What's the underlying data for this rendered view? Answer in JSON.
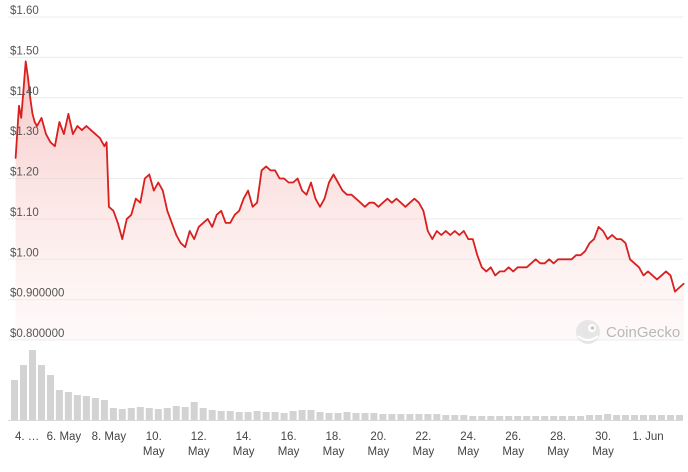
{
  "chart_data": {
    "type": "area",
    "title": "",
    "xlabel": "",
    "ylabel": "",
    "ylim": [
      0.8,
      1.6
    ],
    "grid": true,
    "line_color": "#d8201f",
    "fill_color": "#f3b5b3",
    "volume_color": "#c8c8c8",
    "y_ticks": [
      "$0.800000",
      "$0.900000",
      "$1.00",
      "$1.10",
      "$1.20",
      "$1.30",
      "$1.40",
      "$1.50",
      "$1.60"
    ],
    "x_ticks": [
      {
        "label": "4. …",
        "sub": "",
        "day": 0
      },
      {
        "label": "6. May",
        "sub": "",
        "day": 2
      },
      {
        "label": "8. May",
        "sub": "",
        "day": 4
      },
      {
        "label": "10.",
        "sub": "May",
        "day": 6
      },
      {
        "label": "12.",
        "sub": "May",
        "day": 8
      },
      {
        "label": "14.",
        "sub": "May",
        "day": 10
      },
      {
        "label": "16.",
        "sub": "May",
        "day": 12
      },
      {
        "label": "18.",
        "sub": "May",
        "day": 14
      },
      {
        "label": "20.",
        "sub": "May",
        "day": 16
      },
      {
        "label": "22.",
        "sub": "May",
        "day": 18
      },
      {
        "label": "24.",
        "sub": "May",
        "day": 20
      },
      {
        "label": "26.",
        "sub": "May",
        "day": 22
      },
      {
        "label": "28.",
        "sub": "May",
        "day": 24
      },
      {
        "label": "30.",
        "sub": "May",
        "day": 26
      },
      {
        "label": "1. Jun",
        "sub": "",
        "day": 28
      }
    ],
    "series": [
      {
        "name": "Price",
        "x": [
          -0.15,
          0.0,
          0.1,
          0.2,
          0.3,
          0.4,
          0.5,
          0.6,
          0.7,
          0.8,
          1.0,
          1.2,
          1.4,
          1.6,
          1.8,
          2.0,
          2.2,
          2.4,
          2.6,
          2.8,
          3.0,
          3.2,
          3.4,
          3.6,
          3.8,
          3.9,
          4.0,
          4.2,
          4.4,
          4.6,
          4.8,
          5.0,
          5.2,
          5.4,
          5.6,
          5.8,
          6.0,
          6.2,
          6.4,
          6.6,
          6.8,
          7.0,
          7.2,
          7.4,
          7.6,
          7.8,
          8.0,
          8.2,
          8.4,
          8.6,
          8.8,
          9.0,
          9.2,
          9.4,
          9.6,
          9.8,
          10.0,
          10.2,
          10.4,
          10.6,
          10.8,
          11.0,
          11.2,
          11.4,
          11.6,
          11.8,
          12.0,
          12.2,
          12.4,
          12.6,
          12.8,
          13.0,
          13.2,
          13.4,
          13.6,
          13.8,
          14.0,
          14.2,
          14.4,
          14.6,
          14.8,
          15.0,
          15.2,
          15.4,
          15.6,
          15.8,
          16.0,
          16.2,
          16.4,
          16.6,
          16.8,
          17.0,
          17.2,
          17.4,
          17.6,
          17.8,
          18.0,
          18.2,
          18.4,
          18.6,
          18.8,
          19.0,
          19.2,
          19.4,
          19.6,
          19.8,
          20.0,
          20.2,
          20.4,
          20.6,
          20.8,
          21.0,
          21.2,
          21.4,
          21.6,
          21.8,
          22.0,
          22.2,
          22.4,
          22.6,
          22.8,
          23.0,
          23.2,
          23.4,
          23.6,
          23.8,
          24.0,
          24.2,
          24.4,
          24.6,
          24.8,
          25.0,
          25.2,
          25.4,
          25.6,
          25.8,
          26.0,
          26.2,
          26.4,
          26.6,
          26.8,
          27.0,
          27.2,
          27.4,
          27.6,
          27.8,
          28.0,
          28.2,
          28.4,
          28.6,
          28.8,
          29.0,
          29.2,
          29.4,
          29.6
        ],
        "values": [
          1.25,
          1.38,
          1.35,
          1.42,
          1.49,
          1.45,
          1.4,
          1.36,
          1.34,
          1.33,
          1.35,
          1.31,
          1.29,
          1.28,
          1.34,
          1.31,
          1.36,
          1.31,
          1.33,
          1.32,
          1.33,
          1.32,
          1.31,
          1.3,
          1.28,
          1.29,
          1.13,
          1.12,
          1.09,
          1.05,
          1.1,
          1.11,
          1.15,
          1.14,
          1.2,
          1.21,
          1.17,
          1.19,
          1.17,
          1.12,
          1.09,
          1.06,
          1.04,
          1.03,
          1.07,
          1.05,
          1.08,
          1.09,
          1.1,
          1.08,
          1.11,
          1.12,
          1.09,
          1.09,
          1.11,
          1.12,
          1.15,
          1.17,
          1.13,
          1.14,
          1.22,
          1.23,
          1.22,
          1.22,
          1.2,
          1.2,
          1.19,
          1.19,
          1.2,
          1.17,
          1.16,
          1.19,
          1.15,
          1.13,
          1.15,
          1.19,
          1.21,
          1.19,
          1.17,
          1.16,
          1.16,
          1.15,
          1.14,
          1.13,
          1.14,
          1.14,
          1.13,
          1.14,
          1.15,
          1.14,
          1.15,
          1.14,
          1.13,
          1.14,
          1.15,
          1.14,
          1.12,
          1.07,
          1.05,
          1.07,
          1.06,
          1.07,
          1.06,
          1.07,
          1.06,
          1.07,
          1.05,
          1.05,
          1.01,
          0.98,
          0.97,
          0.98,
          0.96,
          0.97,
          0.97,
          0.98,
          0.97,
          0.98,
          0.98,
          0.98,
          0.99,
          1.0,
          0.99,
          0.99,
          1.0,
          0.99,
          1.0,
          1.0,
          1.0,
          1.0,
          1.01,
          1.01,
          1.02,
          1.04,
          1.05,
          1.08,
          1.07,
          1.05,
          1.06,
          1.05,
          1.05,
          1.04,
          1.0,
          0.99,
          0.98,
          0.96,
          0.97,
          0.96,
          0.95,
          0.96,
          0.97,
          0.96,
          0.92,
          0.93,
          0.94
        ]
      },
      {
        "name": "Volume",
        "x": [
          -0.2,
          0.2,
          0.6,
          1.0,
          1.4,
          1.8,
          2.2,
          2.6,
          3.0,
          3.4,
          3.8,
          4.2,
          4.6,
          5.0,
          5.4,
          5.8,
          6.2,
          6.6,
          7.0,
          7.4,
          7.8,
          8.2,
          8.6,
          9.0,
          9.4,
          9.8,
          10.2,
          10.6,
          11.0,
          11.4,
          11.8,
          12.2,
          12.6,
          13.0,
          13.4,
          13.8,
          14.2,
          14.6,
          15.0,
          15.4,
          15.8,
          16.2,
          16.6,
          17.0,
          17.4,
          17.8,
          18.2,
          18.6,
          19.0,
          19.4,
          19.8,
          20.2,
          20.6,
          21.0,
          21.4,
          21.8,
          22.2,
          22.6,
          23.0,
          23.4,
          23.8,
          24.2,
          24.6,
          25.0,
          25.4,
          25.8,
          26.2,
          26.6,
          27.0,
          27.4,
          27.8,
          28.2,
          28.6,
          29.0,
          29.4
        ],
        "values": [
          40,
          55,
          70,
          55,
          45,
          30,
          28,
          25,
          24,
          22,
          20,
          12,
          11,
          12,
          13,
          12,
          11,
          12,
          14,
          13,
          18,
          12,
          10,
          9,
          9,
          8,
          8,
          9,
          8,
          8,
          7,
          9,
          10,
          10,
          8,
          7,
          7,
          8,
          7,
          7,
          7,
          6,
          6,
          6,
          6,
          6,
          6,
          6,
          5,
          5,
          5,
          4,
          4,
          4,
          4,
          4,
          4,
          4,
          4,
          4,
          4,
          4,
          4,
          4,
          5,
          5,
          6,
          5,
          5,
          5,
          5,
          5,
          5,
          5,
          5
        ]
      }
    ],
    "watermark": "CoinGecko"
  }
}
